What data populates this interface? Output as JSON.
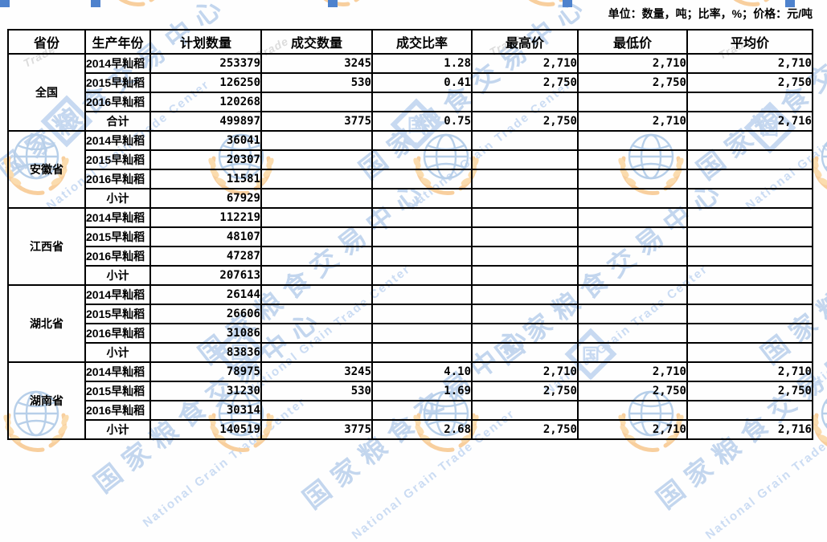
{
  "page": {
    "unit_note": "单位：数量，吨；比率，%；价格：元/吨"
  },
  "watermark": {
    "cjk_text": "国家粮食交易中心",
    "en_text": "National Grain Trade Center",
    "en_fragment": "Trade",
    "logo_char": "国",
    "colors": {
      "cjk_blue": "#c3d6ee",
      "en_blue": "#cbdcf3",
      "gray": "#dcdcdc",
      "globe_blue": "#b7cfe9",
      "wheat_orange": "#f8cf9e",
      "wheat_fill": "#fbdcae",
      "diamond_blue": "#c7d9f1",
      "edge_blue": "#4e82cd"
    }
  },
  "table": {
    "columns": [
      "省份",
      "生产年份",
      "计划数量",
      "成交数量",
      "成交比率",
      "最高价",
      "最低价",
      "平均价"
    ],
    "sections": [
      {
        "province": "全国",
        "rows": [
          {
            "year": "2014早籼稻",
            "planned": "253379",
            "traded": "3245",
            "ratio": "1.28",
            "high": "2,710",
            "low": "2,710",
            "avg": "2,710"
          },
          {
            "year": "2015早籼稻",
            "planned": "126250",
            "traded": "530",
            "ratio": "0.41",
            "high": "2,750",
            "low": "2,750",
            "avg": "2,750"
          },
          {
            "year": "2016早籼稻",
            "planned": "120268",
            "traded": "",
            "ratio": "",
            "high": "",
            "low": "",
            "avg": ""
          },
          {
            "year": "合计",
            "planned": "499897",
            "traded": "3775",
            "ratio": "0.75",
            "high": "2,750",
            "low": "2,710",
            "avg": "2,716",
            "total": true
          }
        ]
      },
      {
        "province": "安徽省",
        "rows": [
          {
            "year": "2014早籼稻",
            "planned": "36041",
            "traded": "",
            "ratio": "",
            "high": "",
            "low": "",
            "avg": ""
          },
          {
            "year": "2015早籼稻",
            "planned": "20307",
            "traded": "",
            "ratio": "",
            "high": "",
            "low": "",
            "avg": ""
          },
          {
            "year": "2016早籼稻",
            "planned": "11581",
            "traded": "",
            "ratio": "",
            "high": "",
            "low": "",
            "avg": ""
          },
          {
            "year": "小计",
            "planned": "67929",
            "traded": "",
            "ratio": "",
            "high": "",
            "low": "",
            "avg": "",
            "total": true
          }
        ]
      },
      {
        "province": "江西省",
        "rows": [
          {
            "year": "2014早籼稻",
            "planned": "112219",
            "traded": "",
            "ratio": "",
            "high": "",
            "low": "",
            "avg": ""
          },
          {
            "year": "2015早籼稻",
            "planned": "48107",
            "traded": "",
            "ratio": "",
            "high": "",
            "low": "",
            "avg": ""
          },
          {
            "year": "2016早籼稻",
            "planned": "47287",
            "traded": "",
            "ratio": "",
            "high": "",
            "low": "",
            "avg": ""
          },
          {
            "year": "小计",
            "planned": "207613",
            "traded": "",
            "ratio": "",
            "high": "",
            "low": "",
            "avg": "",
            "total": true
          }
        ]
      },
      {
        "province": "湖北省",
        "rows": [
          {
            "year": "2014早籼稻",
            "planned": "26144",
            "traded": "",
            "ratio": "",
            "high": "",
            "low": "",
            "avg": ""
          },
          {
            "year": "2015早籼稻",
            "planned": "26606",
            "traded": "",
            "ratio": "",
            "high": "",
            "low": "",
            "avg": ""
          },
          {
            "year": "2016早籼稻",
            "planned": "31086",
            "traded": "",
            "ratio": "",
            "high": "",
            "low": "",
            "avg": ""
          },
          {
            "year": "小计",
            "planned": "83836",
            "traded": "",
            "ratio": "",
            "high": "",
            "low": "",
            "avg": "",
            "total": true
          }
        ]
      },
      {
        "province": "湖南省",
        "rows": [
          {
            "year": "2014早籼稻",
            "planned": "78975",
            "traded": "3245",
            "ratio": "4.10",
            "high": "2,710",
            "low": "2,710",
            "avg": "2,710"
          },
          {
            "year": "2015早籼稻",
            "planned": "31230",
            "traded": "530",
            "ratio": "1.69",
            "high": "2,750",
            "low": "2,750",
            "avg": "2,750"
          },
          {
            "year": "2016早籼稻",
            "planned": "30314",
            "traded": "",
            "ratio": "",
            "high": "",
            "low": "",
            "avg": ""
          },
          {
            "year": "小计",
            "planned": "140519",
            "traded": "3775",
            "ratio": "2.68",
            "high": "2,750",
            "low": "2,710",
            "avg": "2,716",
            "total": true
          }
        ]
      }
    ]
  }
}
